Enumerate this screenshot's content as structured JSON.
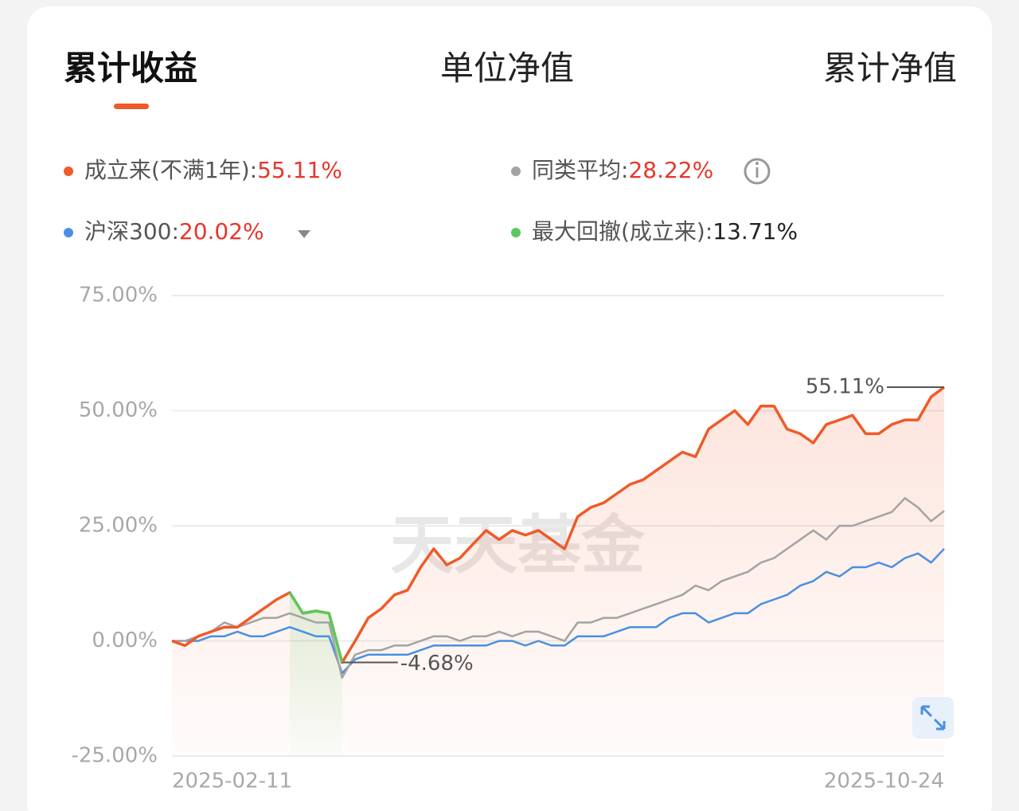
{
  "tabs": [
    "累计收益",
    "单位净值",
    "累计净值"
  ],
  "active_tab": 0,
  "watermark": "天天基金",
  "chart_data": {
    "type": "line",
    "x": [
      "2025-02-11",
      null,
      null,
      null,
      null,
      null,
      null,
      null,
      null,
      null,
      null,
      null,
      null,
      null,
      null,
      null,
      null,
      null,
      null,
      null,
      null,
      null,
      null,
      null,
      null,
      null,
      null,
      null,
      null,
      null,
      null,
      null,
      null,
      null,
      null,
      null,
      null,
      null,
      null,
      null,
      null,
      null,
      null,
      null,
      null,
      null,
      null,
      null,
      null,
      null,
      null,
      null,
      null,
      null,
      null,
      null,
      null,
      null,
      null,
      "2025-10-24"
    ],
    "ylim": [
      -25,
      75
    ],
    "yticks": [
      {
        "value": 75,
        "label": "75.00%"
      },
      {
        "value": 50,
        "label": "50.00%"
      },
      {
        "value": 25,
        "label": "25.00%"
      },
      {
        "value": 0,
        "label": "0.00%"
      },
      {
        "value": -25,
        "label": "-25.00%"
      }
    ],
    "grid": true,
    "series": [
      {
        "name": "成立来(不满1年):",
        "color": "#f05a28",
        "total": 55.11,
        "total_label": "55.11%",
        "values": [
          0,
          -1,
          1,
          2,
          3,
          3,
          5,
          7,
          9,
          10.5,
          6,
          6.5,
          6,
          -4.68,
          0,
          5,
          7,
          10,
          11,
          16,
          20,
          16.5,
          18,
          21,
          24,
          22,
          24,
          23,
          24,
          22,
          20,
          27,
          29,
          30,
          32,
          34,
          35,
          37,
          39,
          41,
          40,
          46,
          48,
          50,
          47,
          51,
          51,
          46,
          45,
          43,
          47,
          48,
          49,
          45,
          45,
          47,
          48,
          48,
          53,
          55.11
        ],
        "value_labels": [
          null,
          null,
          null,
          null,
          null,
          null,
          null,
          null,
          null,
          null,
          null,
          null,
          null,
          "-4.68%",
          null,
          null,
          null,
          null,
          null,
          null,
          null,
          null,
          null,
          null,
          null,
          null,
          null,
          null,
          null,
          null,
          null,
          null,
          null,
          null,
          null,
          null,
          null,
          null,
          null,
          null,
          null,
          null,
          null,
          null,
          null,
          null,
          null,
          null,
          null,
          null,
          null,
          null,
          null,
          null,
          null,
          null,
          null,
          null,
          null,
          "55.11%"
        ]
      },
      {
        "name": "同类平均:",
        "color": "#a3a3a3",
        "total": 28.22,
        "total_label": "28.22%",
        "values": [
          0,
          0,
          1,
          2,
          4,
          3,
          4,
          5,
          5,
          6,
          5,
          4,
          4,
          -8,
          -3,
          -2,
          -2,
          -1,
          -1,
          0,
          1,
          1,
          0,
          1,
          1,
          2,
          1,
          2,
          2,
          1,
          0,
          4,
          4,
          5,
          5,
          6,
          7,
          8,
          9,
          10,
          12,
          11,
          13,
          14,
          15,
          17,
          18,
          20,
          22,
          24,
          22,
          25,
          25,
          26,
          27,
          28,
          31,
          29,
          26,
          28.22
        ]
      },
      {
        "name": "沪深300:",
        "color": "#4a90e2",
        "total": 20.02,
        "total_label": "20.02%",
        "values": [
          0,
          0,
          0,
          1,
          1,
          2,
          1,
          1,
          2,
          3,
          2,
          1,
          1,
          -7,
          -4,
          -3,
          -3,
          -3,
          -3,
          -2,
          -1,
          -1,
          -1,
          -1,
          -1,
          0,
          0,
          -1,
          0,
          -1,
          -1,
          1,
          1,
          1,
          2,
          3,
          3,
          3,
          5,
          6,
          6,
          4,
          5,
          6,
          6,
          8,
          9,
          10,
          12,
          13,
          15,
          14,
          16,
          16,
          17,
          16,
          18,
          19,
          17,
          20.02
        ]
      },
      {
        "name": "最大回撤(成立来):",
        "color": "#5cc85c",
        "total": 13.71,
        "total_label": "13.71%",
        "values": [
          null,
          null,
          null,
          null,
          null,
          null,
          null,
          null,
          null,
          10.5,
          6,
          6.5,
          6,
          -4.68,
          null,
          null,
          null,
          null,
          null,
          null,
          null,
          null,
          null,
          null,
          null,
          null,
          null,
          null,
          null,
          null,
          null,
          null,
          null,
          null,
          null,
          null,
          null,
          null,
          null,
          null,
          null,
          null,
          null,
          null,
          null,
          null,
          null,
          null,
          null,
          null,
          null,
          null,
          null,
          null,
          null,
          null,
          null,
          null,
          null,
          null
        ]
      }
    ]
  }
}
